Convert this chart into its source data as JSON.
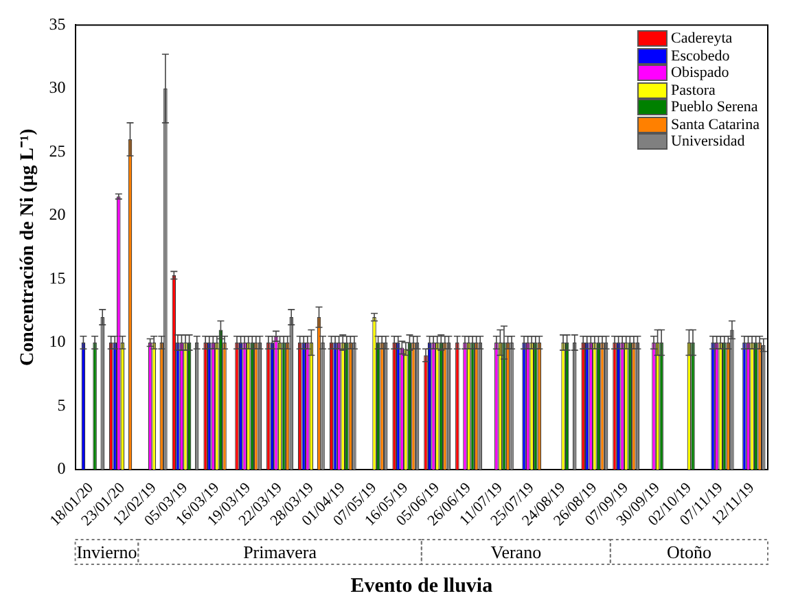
{
  "chart_data": {
    "type": "bar",
    "xlabel": "Evento de lluvia",
    "ylabel": "Concentración de Ni (µg L⁻¹)",
    "categories": [
      "18/01/20",
      "23/01/20",
      "12/02/19",
      "05/03/19",
      "16/03/19",
      "19/03/19",
      "22/03/19",
      "28/03/19",
      "01/04/19",
      "07/05/19",
      "16/05/19",
      "05/06/19",
      "26/06/19",
      "11/07/19",
      "25/07/19",
      "24/08/19",
      "26/08/19",
      "07/09/19",
      "30/09/19",
      "02/10/19",
      "07/11/19",
      "12/11/19"
    ],
    "series": [
      {
        "name": "Cadereyta",
        "color": "#ff0000",
        "values": [
          null,
          10,
          null,
          15.3,
          10,
          10,
          10,
          10,
          10,
          null,
          10,
          9,
          10,
          null,
          null,
          null,
          10,
          10,
          null,
          null,
          null,
          null
        ],
        "errors": [
          null,
          0.5,
          null,
          0.3,
          0.5,
          0.5,
          0.5,
          0.5,
          0.5,
          null,
          0.5,
          0.5,
          0.5,
          null,
          null,
          null,
          0.5,
          0.5,
          null,
          null,
          null,
          null
        ]
      },
      {
        "name": "Escobedo",
        "color": "#0000ff",
        "values": [
          10,
          10,
          null,
          10,
          10,
          10,
          10,
          10,
          10,
          null,
          10,
          10,
          null,
          null,
          10,
          null,
          10,
          10,
          null,
          null,
          10,
          10
        ],
        "errors": [
          0.5,
          0.5,
          null,
          0.6,
          0.5,
          0.5,
          0.5,
          0.5,
          0.5,
          null,
          0.5,
          0.5,
          null,
          null,
          0.5,
          null,
          0.5,
          0.5,
          null,
          null,
          0.5,
          0.5
        ]
      },
      {
        "name": "Obispado",
        "color": "#ff00ff",
        "values": [
          null,
          21.5,
          10,
          10,
          10,
          10,
          10.5,
          10,
          10,
          null,
          9.6,
          10,
          10,
          10,
          10,
          null,
          10,
          10,
          10,
          null,
          10,
          10
        ],
        "errors": [
          null,
          0.2,
          0.3,
          0.6,
          0.5,
          0.5,
          0.4,
          0.5,
          0.5,
          null,
          0.5,
          0.5,
          0.5,
          0.5,
          0.5,
          null,
          0.5,
          0.5,
          0.5,
          null,
          0.5,
          0.5
        ]
      },
      {
        "name": "Pastora",
        "color": "#ffff00",
        "values": [
          null,
          10,
          10,
          10,
          10,
          10,
          10,
          10,
          10,
          12,
          9.5,
          10,
          10,
          10,
          10,
          10,
          10,
          10,
          10,
          10,
          10,
          10
        ],
        "errors": [
          null,
          0.5,
          0.5,
          0.6,
          0.5,
          0.5,
          0.5,
          1,
          0.6,
          0.3,
          0.5,
          0.5,
          0.5,
          1,
          0.5,
          0.6,
          0.5,
          0.5,
          1,
          1,
          0.5,
          0.5
        ]
      },
      {
        "name": "Pueblo Serena",
        "color": "#008000",
        "values": [
          10,
          null,
          null,
          10,
          11,
          10,
          10,
          null,
          10,
          10,
          10,
          10,
          10,
          10,
          10,
          10,
          10,
          10,
          10,
          10,
          10,
          10
        ],
        "errors": [
          0.5,
          null,
          null,
          0.6,
          0.7,
          0.5,
          0.5,
          null,
          0.5,
          0.5,
          0.6,
          0.6,
          0.5,
          1.3,
          0.5,
          0.6,
          0.5,
          0.5,
          1,
          1,
          0.5,
          0.5
        ]
      },
      {
        "name": "Santa Catarina",
        "color": "#ff8000",
        "values": [
          null,
          26,
          10,
          null,
          10,
          10,
          10,
          12,
          10,
          10,
          10,
          10,
          10,
          10,
          10,
          null,
          10,
          10,
          null,
          null,
          10,
          10
        ],
        "errors": [
          null,
          1.3,
          0.5,
          null,
          0.5,
          0.5,
          0.5,
          0.8,
          0.5,
          0.5,
          0.5,
          0.5,
          0.5,
          0.5,
          0.5,
          null,
          0.5,
          0.5,
          null,
          null,
          0.5,
          0.5
        ]
      },
      {
        "name": "Universidad",
        "color": "#808080",
        "values": [
          12,
          null,
          30,
          10,
          null,
          10,
          12,
          10,
          10,
          10,
          10,
          10,
          10,
          10,
          null,
          10,
          10,
          10,
          null,
          null,
          11,
          9.8
        ],
        "errors": [
          0.6,
          null,
          2.7,
          0.5,
          null,
          0.5,
          0.6,
          0.5,
          0.5,
          0.5,
          0.5,
          0.5,
          0.5,
          0.5,
          null,
          0.6,
          0.5,
          0.5,
          null,
          null,
          0.7,
          0.5
        ]
      }
    ],
    "ylim": [
      0,
      35
    ],
    "yticks": [
      0,
      5,
      10,
      15,
      20,
      25,
      30,
      35
    ],
    "legend": "top right",
    "annotations": [
      "Invierno",
      "Primavera",
      "Verano",
      "Otoño"
    ]
  }
}
